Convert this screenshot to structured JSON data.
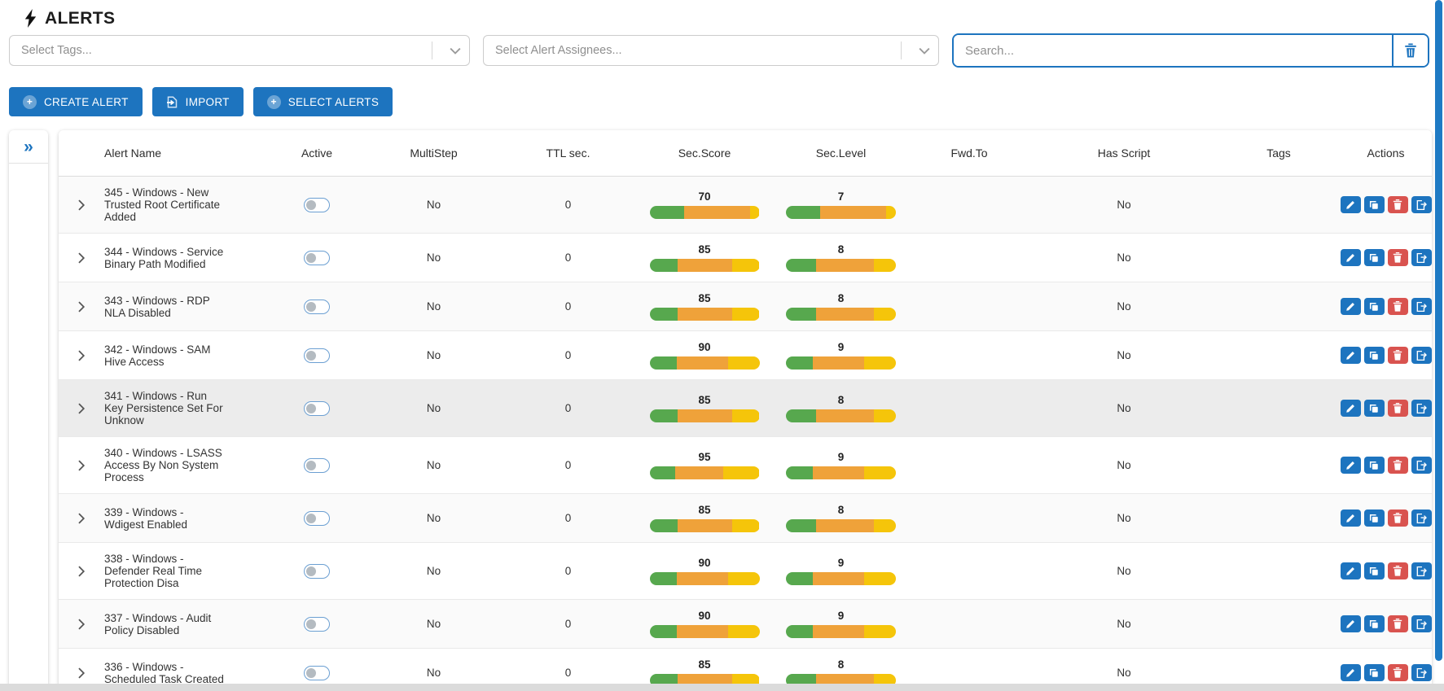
{
  "page": {
    "title": "ALERTS"
  },
  "filters": {
    "tags_placeholder": "Select Tags...",
    "assignees_placeholder": "Select Alert Assignees...",
    "search_placeholder": "Search...",
    "search_value": ""
  },
  "toolbar": {
    "create_label": "CREATE ALERT",
    "import_label": "IMPORT",
    "select_label": "SELECT ALERTS"
  },
  "table": {
    "columns": [
      "Alert Name",
      "Active",
      "MultiStep",
      "TTL sec.",
      "Sec.Score",
      "Sec.Level",
      "Fwd.To",
      "Has Script",
      "Tags",
      "Actions"
    ],
    "rows": [
      {
        "name": "345 - Windows - New Trusted Root Certificate Added",
        "active": false,
        "multistep": "No",
        "ttl": "0",
        "sec_score": 70,
        "sec_level": 7,
        "fwd_to": "",
        "has_script": "No",
        "tags": "",
        "highlighted": false
      },
      {
        "name": "344 - Windows - Service Binary Path Modified",
        "active": false,
        "multistep": "No",
        "ttl": "0",
        "sec_score": 85,
        "sec_level": 8,
        "fwd_to": "",
        "has_script": "No",
        "tags": "",
        "highlighted": false
      },
      {
        "name": "343 - Windows - RDP NLA Disabled",
        "active": false,
        "multistep": "No",
        "ttl": "0",
        "sec_score": 85,
        "sec_level": 8,
        "fwd_to": "",
        "has_script": "No",
        "tags": "",
        "highlighted": false
      },
      {
        "name": "342 - Windows - SAM Hive Access",
        "active": false,
        "multistep": "No",
        "ttl": "0",
        "sec_score": 90,
        "sec_level": 9,
        "fwd_to": "",
        "has_script": "No",
        "tags": "",
        "highlighted": false
      },
      {
        "name": "341 - Windows - Run Key Persistence Set For Unknow",
        "active": false,
        "multistep": "No",
        "ttl": "0",
        "sec_score": 85,
        "sec_level": 8,
        "fwd_to": "",
        "has_script": "No",
        "tags": "",
        "highlighted": true
      },
      {
        "name": "340 - Windows - LSASS Access By Non System Process",
        "active": false,
        "multistep": "No",
        "ttl": "0",
        "sec_score": 95,
        "sec_level": 9,
        "fwd_to": "",
        "has_script": "No",
        "tags": "",
        "highlighted": false
      },
      {
        "name": "339 - Windows - Wdigest Enabled",
        "active": false,
        "multistep": "No",
        "ttl": "0",
        "sec_score": 85,
        "sec_level": 8,
        "fwd_to": "",
        "has_script": "No",
        "tags": "",
        "highlighted": false
      },
      {
        "name": "338 - Windows - Defender Real Time Protection Disa",
        "active": false,
        "multistep": "No",
        "ttl": "0",
        "sec_score": 90,
        "sec_level": 9,
        "fwd_to": "",
        "has_script": "No",
        "tags": "",
        "highlighted": false
      },
      {
        "name": "337 - Windows - Audit Policy Disabled",
        "active": false,
        "multistep": "No",
        "ttl": "0",
        "sec_score": 90,
        "sec_level": 9,
        "fwd_to": "",
        "has_script": "No",
        "tags": "",
        "highlighted": false
      },
      {
        "name": "336 - Windows - Scheduled Task Created",
        "active": false,
        "multistep": "No",
        "ttl": "0",
        "sec_score": 85,
        "sec_level": 8,
        "fwd_to": "",
        "has_script": "No",
        "tags": "",
        "highlighted": false
      }
    ]
  },
  "colors": {
    "primary": "#1d74bf",
    "danger": "#d9534f",
    "bar_green": "#57a84e",
    "bar_orange": "#efa23a",
    "bar_yellow": "#f5c50a",
    "scrollbar": "#1e7ac4"
  }
}
